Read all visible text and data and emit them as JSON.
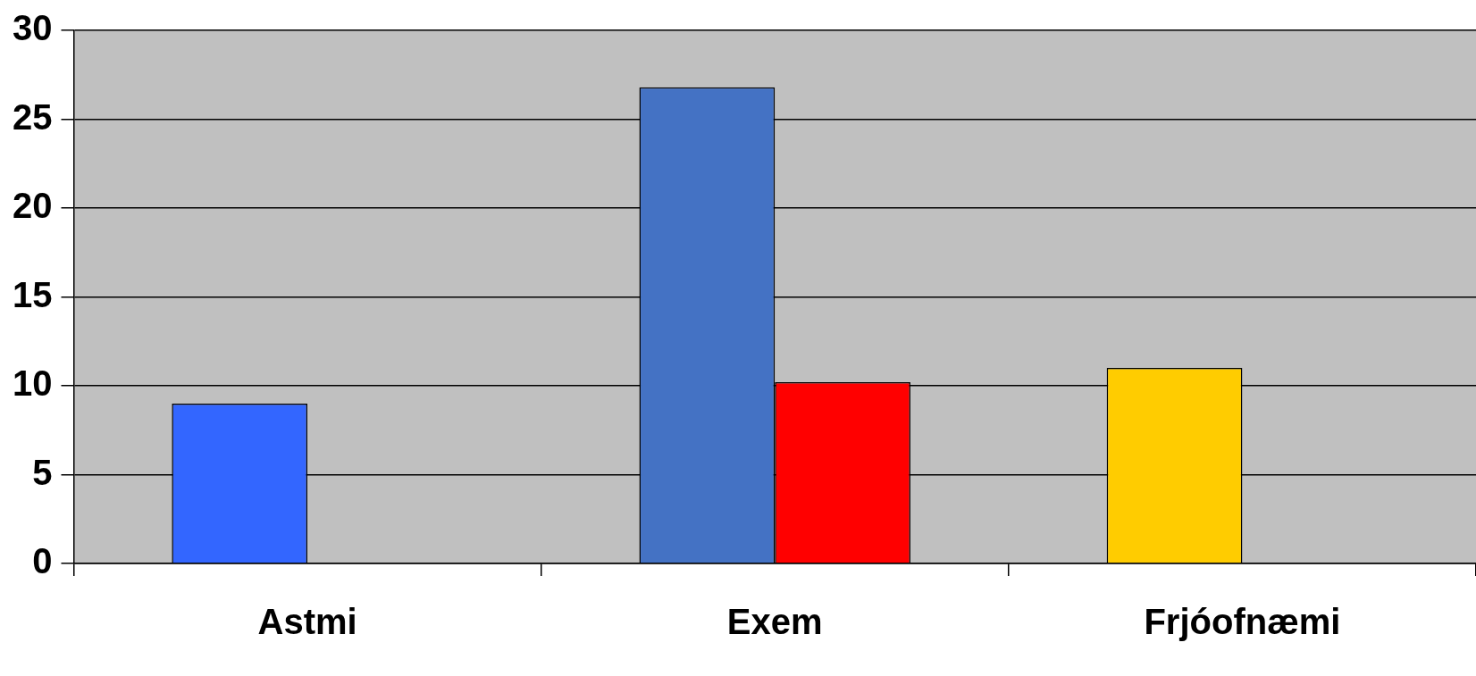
{
  "chart_data": {
    "type": "bar",
    "categories": [
      "Astmi",
      "Exem",
      "Frjóofnæmi"
    ],
    "series": [
      {
        "colors": [
          "#3366ff",
          "#4472c4",
          "#ffcc00"
        ],
        "values": [
          9,
          26.8,
          11
        ]
      },
      {
        "color": "#ff0000",
        "values": [
          null,
          10.2,
          null
        ]
      }
    ],
    "ylim": [
      0,
      30
    ],
    "yticks": [
      0,
      5,
      10,
      15,
      20,
      25,
      30
    ],
    "grid": "y",
    "legend": false
  }
}
